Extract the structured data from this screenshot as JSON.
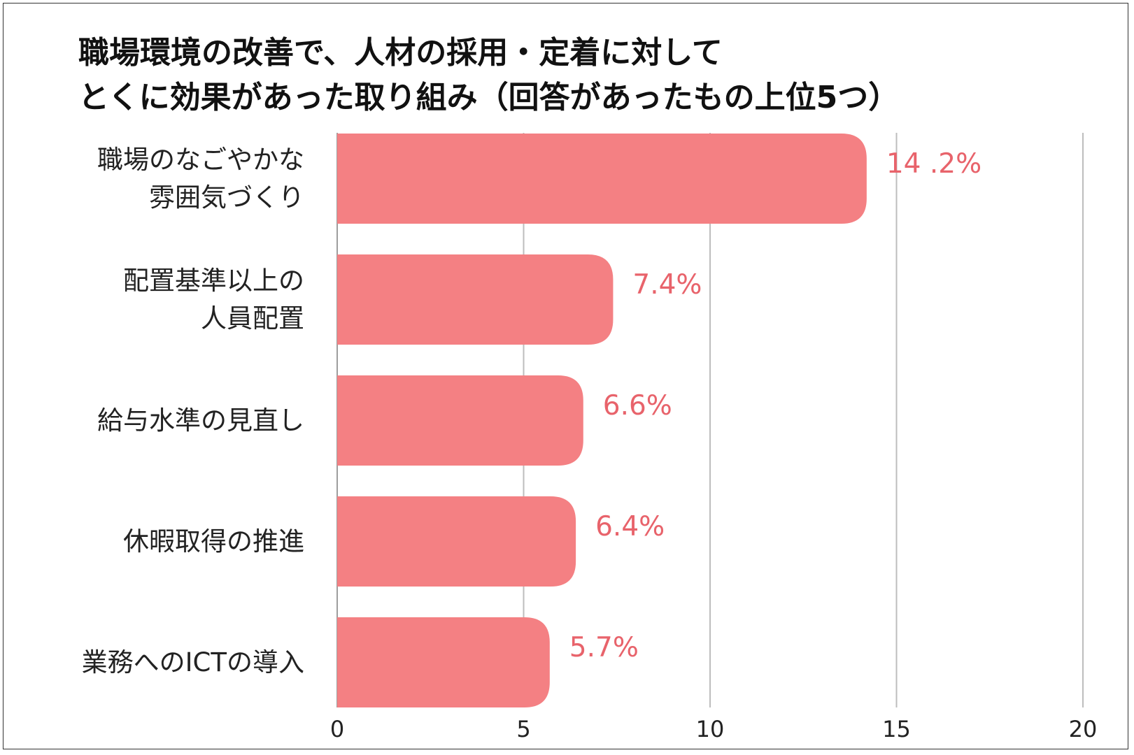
{
  "title_lines": [
    "職場環境の改善で、人材の採用・定着に対して",
    "とくに効果があった取り組み（回答があったもの上位5つ）"
  ],
  "chart_data": {
    "type": "bar",
    "orientation": "horizontal",
    "title": "職場環境の改善で、人材の採用・定着に対して とくに効果があった取り組み（回答があったもの上位5つ）",
    "categories": [
      [
        "職場のなごやかな",
        "雰囲気づくり"
      ],
      [
        "配置基準以上の",
        "人員配置"
      ],
      [
        "給与水準の見直し"
      ],
      [
        "休暇取得の推進"
      ],
      [
        "業務へのICTの導入"
      ]
    ],
    "values": [
      14.2,
      7.4,
      6.6,
      6.4,
      5.7
    ],
    "value_labels": [
      "14 .2%",
      "7.4%",
      "6.6%",
      "6.4%",
      "5.7%"
    ],
    "xlim": [
      0,
      20
    ],
    "xticks": [
      "0",
      "5",
      "10",
      "15",
      "20"
    ],
    "grid": true,
    "bar_color": "#f48083",
    "label_color": "#e8636b",
    "grid_color": "#bdbdbd"
  }
}
